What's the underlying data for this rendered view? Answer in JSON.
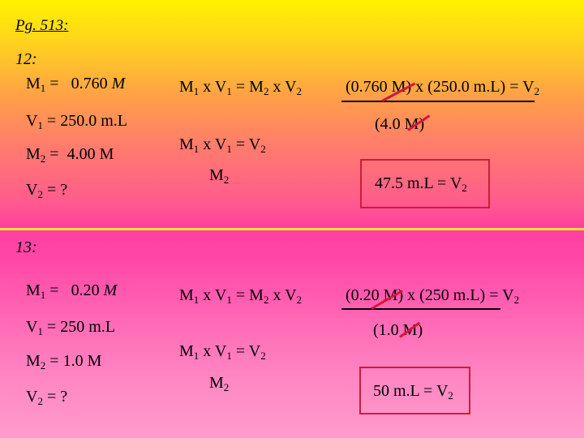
{
  "page_ref": "Pg. 513:",
  "problems": [
    {
      "number": "12:",
      "given": {
        "M1": {
          "sym": "M",
          "sub": "1",
          "eq": " =",
          "value": "0.760",
          "unit": " M"
        },
        "V1": {
          "sym": "V",
          "sub": "1",
          "eq": " =",
          "value": "250.0",
          "unit": " m.L"
        },
        "M2": {
          "sym": "M",
          "sub": "2",
          "eq": " =",
          "value": "4.00",
          "unit": " M"
        },
        "V2": {
          "sym": "V",
          "sub": "2",
          "eq": " =",
          "value": " ?"
        }
      },
      "equation": {
        "a": "M",
        "a_sub": "1",
        "x1": " x V",
        "b_sub": "1",
        "mid": " = M",
        "c_sub": "2",
        "x2": " x V",
        "d_sub": "2"
      },
      "rearranged": {
        "top_a": "M",
        "top_a_sub": "1",
        "top_x": " x V",
        "top_b_sub": "1",
        "top_eq": " = V",
        "top_c_sub": "2",
        "bottom": "M",
        "bottom_sub": "2"
      },
      "substitution": {
        "numerator": "(0.760 M) x (250.0 m.L)",
        "equals": " = V",
        "equals_sub": "2",
        "denominator": "(4.0 M)"
      },
      "answer": {
        "text": "47.5 m.L = V",
        "sub": "2"
      }
    },
    {
      "number": "13:",
      "given": {
        "M1": {
          "sym": "M",
          "sub": "1",
          "eq": " =",
          "value": "0.20",
          "unit": " M"
        },
        "V1": {
          "sym": "V",
          "sub": "1",
          "eq": " =",
          "value": "250",
          "unit": " m.L"
        },
        "M2": {
          "sym": "M",
          "sub": "2",
          "eq": " =",
          "value": "1.0",
          "unit": " M"
        },
        "V2": {
          "sym": "V",
          "sub": "2",
          "eq": " =",
          "value": " ?"
        }
      },
      "equation": {
        "a": "M",
        "a_sub": "1",
        "x1": " x V",
        "b_sub": "1",
        "mid": " = M",
        "c_sub": "2",
        "x2": " x V",
        "d_sub": "2"
      },
      "rearranged": {
        "top_a": "M",
        "top_a_sub": "1",
        "top_x": " x V",
        "top_b_sub": "1",
        "top_eq": " = V",
        "top_c_sub": "2",
        "bottom": "M",
        "bottom_sub": "2"
      },
      "substitution": {
        "numerator": "(0.20 M) x (250 m.L)",
        "equals": " = V",
        "equals_sub": "2",
        "denominator": "(1.0 M)"
      },
      "answer": {
        "text": "50 m.L = V",
        "sub": "2"
      }
    }
  ],
  "colors": {
    "divider": "#f2e23a",
    "answer_box": "#cc1d3a",
    "cancel_mark": "#d6163b"
  }
}
